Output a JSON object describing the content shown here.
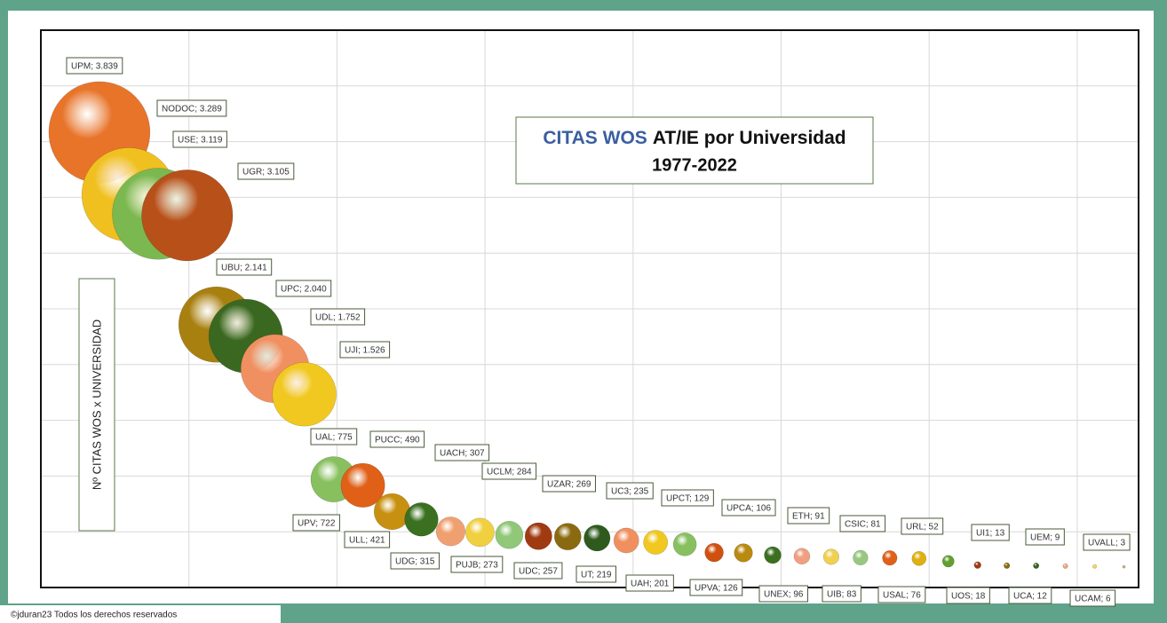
{
  "chart_data": {
    "type": "bubble",
    "title_highlight": "CITAS WOS",
    "title": "AT/IE por Universidad",
    "subtitle": "1977-2022",
    "y_label": "Nº CITAS WOS x UNIVERSIDAD",
    "footer": "©jduran23 Todos los derechos reservados",
    "xlim": [
      0,
      37.5
    ],
    "ylim": [
      -180,
      4740
    ],
    "grid": true,
    "x": [
      2,
      3,
      4,
      5,
      6,
      7,
      8,
      9,
      10,
      11,
      12,
      13,
      14,
      15,
      16,
      17,
      18,
      19,
      20,
      21,
      22,
      23,
      24,
      25,
      26,
      27,
      28,
      29,
      30,
      31,
      32,
      33,
      34,
      35,
      36,
      37
    ],
    "values": [
      3839,
      3289,
      3119,
      3105,
      2141,
      2040,
      1752,
      1526,
      775,
      722,
      490,
      421,
      315,
      307,
      284,
      273,
      269,
      257,
      235,
      219,
      201,
      129,
      126,
      106,
      96,
      91,
      83,
      81,
      76,
      52,
      18,
      13,
      12,
      9,
      6,
      3
    ],
    "value_labels": [
      "UPM; 3.839",
      "NODOC; 3.289",
      "USE; 3.119",
      "UGR; 3.105",
      "UBU; 2.141",
      "UPC; 2.040",
      "UDL; 1.752",
      "UJI; 1.526",
      "UAL; 775",
      "UPV; 722",
      "PUCC; 490",
      "ULL; 421",
      "UDG; 315",
      "UACH; 307",
      "UCLM; 284",
      "PUJB; 273",
      "UZAR; 269",
      "UDC; 257",
      "UC3; 235",
      "UT; 219",
      "UAH; 201",
      "UPCT; 129",
      "UPVA; 126",
      "UPCA; 106",
      "UNEX; 96",
      "ETH; 91",
      "UIB; 83",
      "CSIC; 81",
      "USAL; 76",
      "URL; 52",
      "UOS; 18",
      "UI1; 13",
      "UCA; 12",
      "UEM; 9",
      "UCAM; 6",
      "UVALL; 3"
    ],
    "colors": [
      "#e8742a",
      "#f0c020",
      "#7cb850",
      "#b8501a",
      "#a88010",
      "#3a6820",
      "#f09060",
      "#f0c820",
      "#88c060",
      "#e06018",
      "#c89010",
      "#3a7020",
      "#f0a070",
      "#f0d040",
      "#90c878",
      "#a03a10",
      "#8a6a10",
      "#2e5a1e",
      "#f09060",
      "#f0c820",
      "#88c060",
      "#d05010",
      "#b88a10",
      "#3a7020",
      "#f0a080",
      "#f0d050",
      "#98c880",
      "#e06018",
      "#e0b010",
      "#60a030",
      "#a03a10",
      "#8a6a10",
      "#3a6020",
      "#f0a080",
      "#f0d050",
      "#c8b060"
    ]
  }
}
